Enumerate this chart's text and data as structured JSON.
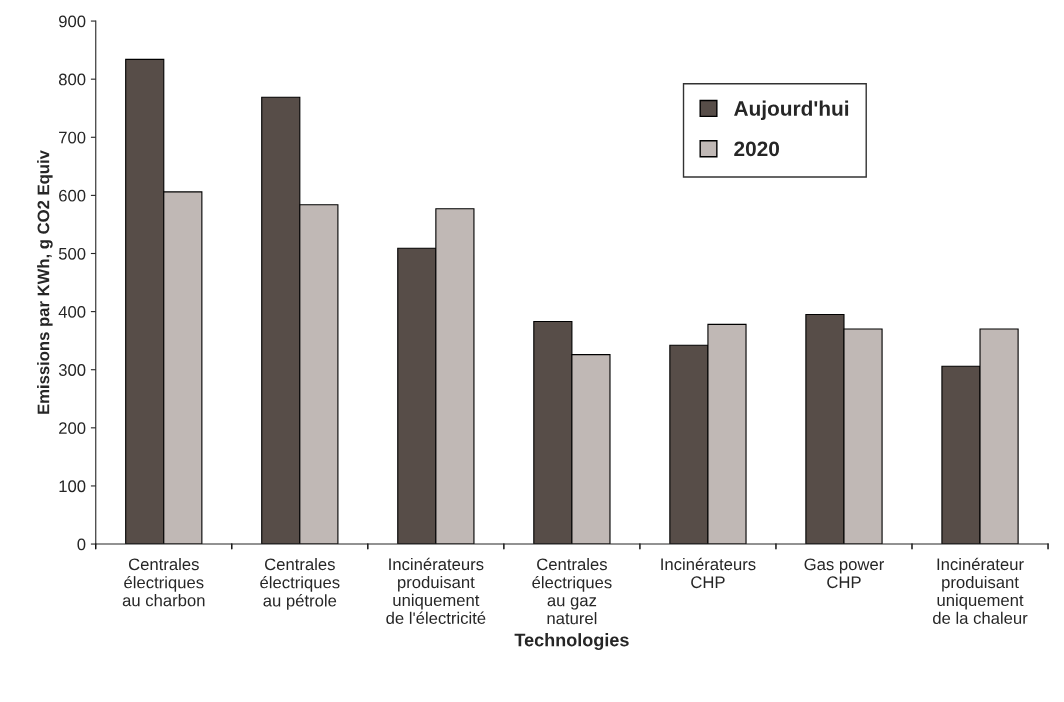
{
  "chart_data": {
    "type": "bar",
    "categories": [
      "Centrales\nélectriques\nau charbon",
      "Centrales\nélectriques\nau pétrole",
      "Incinérateurs\nproduisant\nuniquement\nde l'électricité",
      "Centrales\nélectriques\nau gaz\nnaturel",
      "Incinérateurs\nCHP",
      "Gas power\nCHP",
      "Incinérateur\nproduisant\nuniquement\nde la chaleur"
    ],
    "series": [
      {
        "name": "Aujourd'hui",
        "color": "#574d48",
        "values": [
          834,
          769,
          509,
          383,
          342,
          395,
          306
        ]
      },
      {
        "name": "2020",
        "color": "#c0b8b5",
        "values": [
          606,
          584,
          577,
          326,
          378,
          370,
          370
        ]
      }
    ],
    "xlabel": "Technologies",
    "ylabel": "Emissions par KWh, g CO2 Equiv",
    "ylim": [
      0,
      900
    ],
    "yticks": [
      0,
      100,
      200,
      300,
      400,
      500,
      600,
      700,
      800,
      900
    ],
    "grid": false,
    "legend": "top right"
  }
}
